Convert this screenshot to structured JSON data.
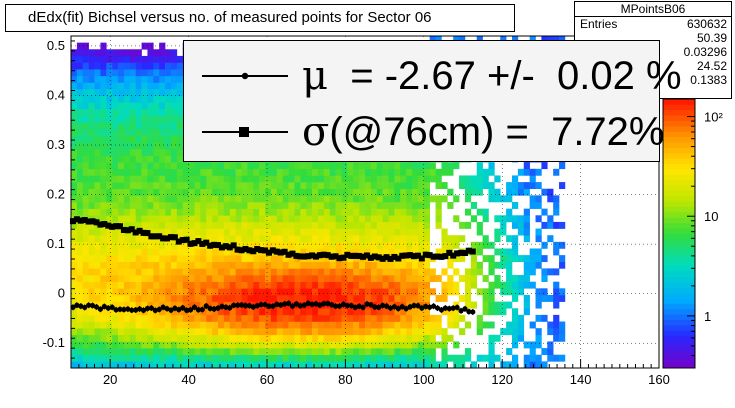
{
  "chart_data": {
    "type": "heatmap",
    "title": "dEdx(fit) Bichsel versus no. of measured points for Sector 06",
    "xlabel": "",
    "ylabel": "",
    "xlim": [
      10,
      160
    ],
    "ylim": [
      -0.15,
      0.52
    ],
    "x_ticks": [
      20,
      40,
      60,
      80,
      100,
      120,
      140,
      160
    ],
    "y_ticks": [
      -0.1,
      0,
      0.1,
      0.2,
      0.3,
      0.4,
      0.5
    ],
    "y_tick_labels": [
      "-0.1",
      "0",
      "0.1",
      "0.2",
      "0.3",
      "0.4",
      "0.5"
    ],
    "x_tick_labels": [
      "20",
      "40",
      "60",
      "80",
      "100",
      "120",
      "140",
      "160"
    ],
    "z_scale": "log",
    "zlim": [
      0.3,
      150
    ],
    "z_ticks": [
      1,
      10,
      100
    ],
    "z_tick_labels": [
      "1",
      "10",
      "10²"
    ],
    "grid": true,
    "series": [
      {
        "marker": "circle",
        "x": [
          10,
          20,
          30,
          40,
          50,
          60,
          70,
          80,
          90,
          100,
          105,
          110,
          113
        ],
        "values": [
          -0.025,
          -0.03,
          -0.032,
          -0.03,
          -0.027,
          -0.023,
          -0.022,
          -0.023,
          -0.026,
          -0.028,
          -0.03,
          -0.032,
          -0.04
        ]
      },
      {
        "marker": "square",
        "x": [
          10,
          20,
          30,
          40,
          50,
          60,
          70,
          80,
          90,
          100,
          105,
          110,
          113
        ],
        "values": [
          0.15,
          0.138,
          0.12,
          0.105,
          0.095,
          0.085,
          0.078,
          0.075,
          0.074,
          0.075,
          0.078,
          0.082,
          0.09
        ]
      }
    ]
  },
  "legend": {
    "mu": {
      "symbol": "μ",
      "text": "  = -2.67 +/-  0.02 %"
    },
    "sigma": {
      "symbol": "σ",
      "text": "(@76cm) =  7.72%"
    }
  },
  "stats": {
    "title": "MPointsB06",
    "rows": [
      {
        "label": "Entries",
        "value": "630632"
      },
      {
        "label": "",
        "value": "50.39"
      },
      {
        "label": "",
        "value": "0.03296"
      },
      {
        "label": "",
        "value": "24.52"
      },
      {
        "label": "",
        "value": "0.1383"
      }
    ]
  }
}
